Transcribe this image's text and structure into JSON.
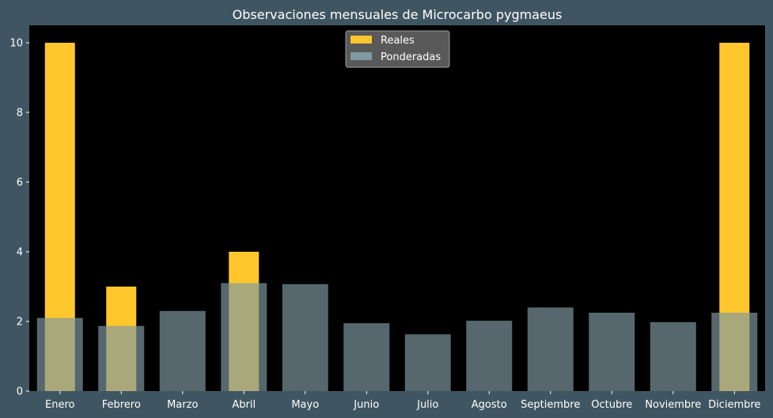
{
  "chart_data": {
    "type": "bar",
    "title": "Observaciones mensuales de Microcarbo pygmaeus",
    "xlabel": "",
    "ylabel": "",
    "categories": [
      "Enero",
      "Febrero",
      "Marzo",
      "Abril",
      "Mayo",
      "Junio",
      "Julio",
      "Agosto",
      "Septiembre",
      "Octubre",
      "Noviembre",
      "Diciembre"
    ],
    "series": [
      {
        "name": "Reales",
        "color": "#ffc72c",
        "values": [
          10,
          3,
          0,
          4,
          0,
          0,
          0,
          0,
          0,
          0,
          0,
          10
        ]
      },
      {
        "name": "Ponderadas",
        "color": "#7f9aa1",
        "values": [
          2.1,
          1.87,
          2.3,
          3.1,
          3.07,
          1.95,
          1.63,
          2.02,
          2.4,
          2.25,
          1.98,
          2.25
        ]
      }
    ],
    "ylim": [
      0,
      10.5
    ],
    "yticks": [
      0,
      2,
      4,
      6,
      8,
      10
    ],
    "grid": false,
    "legend": "top-center",
    "colors": {
      "page_background": "#3f5662",
      "plot_background": "#000000",
      "text": "#ffffff"
    }
  }
}
